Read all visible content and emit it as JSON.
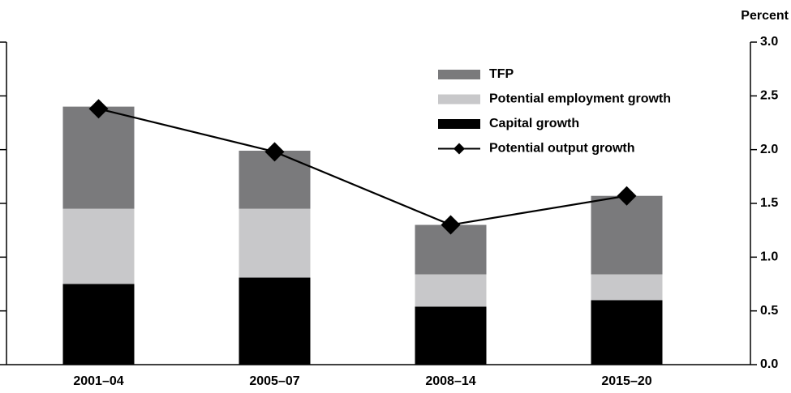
{
  "chart_data": {
    "type": "stacked-bar-line",
    "y_axis_label": "Percent",
    "categories": [
      "2001–04",
      "2005–07",
      "2008–14",
      "2015–20"
    ],
    "series": [
      {
        "name": "Capital growth",
        "color": "#000000",
        "values": [
          0.75,
          0.81,
          0.54,
          0.6
        ]
      },
      {
        "name": "Potential employment growth",
        "color": "#c8c8ca",
        "values": [
          0.7,
          0.64,
          0.3,
          0.24
        ]
      },
      {
        "name": "TFP",
        "color": "#7a7a7c",
        "values": [
          0.95,
          0.54,
          0.46,
          0.73
        ]
      },
      {
        "name": "Potential output growth",
        "color": "#000000",
        "type": "line",
        "values": [
          2.38,
          1.98,
          1.3,
          1.57
        ]
      }
    ],
    "ylim": [
      0,
      3
    ],
    "yticks": [
      {
        "value": 0,
        "label": "0.0"
      },
      {
        "value": 0.5,
        "label": "0.5"
      },
      {
        "value": 1,
        "label": "1.0"
      },
      {
        "value": 1.5,
        "label": "1.5"
      },
      {
        "value": 2,
        "label": "2.0"
      },
      {
        "value": 2.5,
        "label": "2.5"
      },
      {
        "value": 3,
        "label": "3.0"
      }
    ],
    "legend": "top-right"
  }
}
